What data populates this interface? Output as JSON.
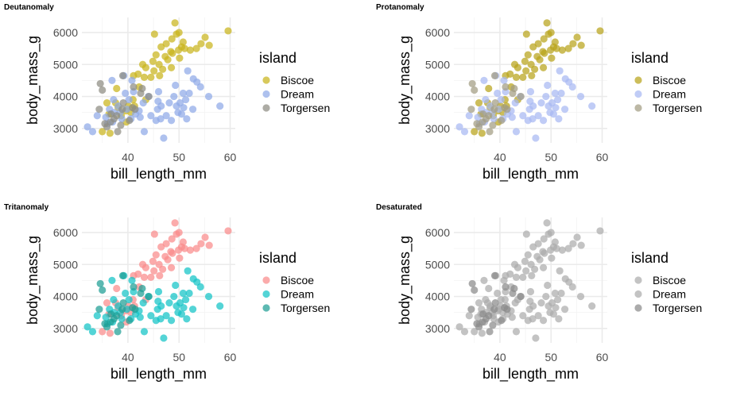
{
  "chart_data": {
    "type": "scatter",
    "xlabel": "bill_length_mm",
    "ylabel": "body_mass_g",
    "xlim": [
      31,
      61
    ],
    "ylim": [
      2550,
      6470
    ],
    "xticks": [
      40,
      50,
      60
    ],
    "yticks": [
      3000,
      4000,
      5000,
      6000
    ],
    "xminor": [
      35,
      45,
      55
    ],
    "yminor": [
      3500,
      4500,
      5500
    ],
    "legend_title": "island",
    "legend_position": "right",
    "grid": true,
    "series": [
      {
        "name": "Biscoe",
        "points": [
          [
            59.6,
            6050
          ],
          [
            49.2,
            6300
          ],
          [
            45.2,
            5950
          ],
          [
            50.0,
            6000
          ],
          [
            48.6,
            5800
          ],
          [
            49.5,
            5950
          ],
          [
            47.5,
            5650
          ],
          [
            46.5,
            5550
          ],
          [
            48.4,
            5400
          ],
          [
            50.5,
            5550
          ],
          [
            52.2,
            5450
          ],
          [
            55.1,
            5850
          ],
          [
            54.3,
            5650
          ],
          [
            55.9,
            5600
          ],
          [
            45.5,
            5300
          ],
          [
            44.9,
            5100
          ],
          [
            46.1,
            5000
          ],
          [
            47.3,
            5250
          ],
          [
            50.8,
            5700
          ],
          [
            49.9,
            5450
          ],
          [
            46.8,
            4850
          ],
          [
            43.5,
            4900
          ],
          [
            42.9,
            5000
          ],
          [
            45.1,
            4800
          ],
          [
            44.5,
            4600
          ],
          [
            47.8,
            5150
          ],
          [
            48.7,
            5350
          ],
          [
            46.2,
            4650
          ],
          [
            50.1,
            5200
          ],
          [
            51.1,
            5500
          ],
          [
            53.4,
            5500
          ],
          [
            42.0,
            4700
          ],
          [
            41.1,
            4650
          ],
          [
            48.5,
            4900
          ],
          [
            43.2,
            4600
          ],
          [
            40.6,
            3500
          ],
          [
            37.6,
            3800
          ],
          [
            38.7,
            3400
          ],
          [
            41.3,
            3700
          ],
          [
            35.9,
            3800
          ],
          [
            37.8,
            4250
          ],
          [
            39.6,
            3550
          ],
          [
            42.2,
            4300
          ],
          [
            36.5,
            2850
          ],
          [
            35.0,
            2900
          ],
          [
            38.1,
            3650
          ],
          [
            40.1,
            3700
          ],
          [
            41.0,
            3900
          ],
          [
            39.7,
            3200
          ],
          [
            36.3,
            3450
          ],
          [
            43.5,
            3900
          ]
        ]
      },
      {
        "name": "Dream",
        "points": [
          [
            32.1,
            3050
          ],
          [
            33.1,
            2900
          ],
          [
            34.0,
            3400
          ],
          [
            35.7,
            3350
          ],
          [
            36.4,
            3600
          ],
          [
            37.2,
            3900
          ],
          [
            38.1,
            3700
          ],
          [
            39.5,
            4100
          ],
          [
            40.2,
            3900
          ],
          [
            41.1,
            4150
          ],
          [
            39.2,
            4650
          ],
          [
            40.8,
            4500
          ],
          [
            36.9,
            4500
          ],
          [
            37.3,
            3500
          ],
          [
            38.8,
            3300
          ],
          [
            39.8,
            3600
          ],
          [
            41.5,
            3450
          ],
          [
            42.2,
            3550
          ],
          [
            40.6,
            3300
          ],
          [
            43.2,
            2900
          ],
          [
            36.0,
            3150
          ],
          [
            37.0,
            3200
          ],
          [
            38.5,
            3500
          ],
          [
            47.0,
            2700
          ],
          [
            45.5,
            3250
          ],
          [
            46.4,
            3300
          ],
          [
            47.5,
            3400
          ],
          [
            45.8,
            3600
          ],
          [
            46.5,
            3700
          ],
          [
            48.1,
            3800
          ],
          [
            49.0,
            4000
          ],
          [
            50.2,
            3800
          ],
          [
            50.8,
            4100
          ],
          [
            51.3,
            3900
          ],
          [
            52.0,
            4100
          ],
          [
            49.5,
            3700
          ],
          [
            50.5,
            3450
          ],
          [
            51.5,
            3300
          ],
          [
            52.7,
            3600
          ],
          [
            49.8,
            3500
          ],
          [
            50.9,
            3650
          ],
          [
            52.8,
            4550
          ],
          [
            53.5,
            4450
          ],
          [
            51.7,
            4800
          ],
          [
            54.2,
            4300
          ],
          [
            55.8,
            4000
          ],
          [
            58.0,
            3700
          ],
          [
            49.3,
            4350
          ],
          [
            45.9,
            3850
          ],
          [
            44.5,
            3400
          ],
          [
            46.0,
            4150
          ],
          [
            48.5,
            3250
          ],
          [
            42.4,
            3350
          ],
          [
            43.0,
            3800
          ],
          [
            44.0,
            4000
          ]
        ]
      },
      {
        "name": "Torgersen",
        "points": [
          [
            34.4,
            3600
          ],
          [
            34.6,
            4400
          ],
          [
            35.0,
            4200
          ],
          [
            36.6,
            3200
          ],
          [
            35.5,
            3150
          ],
          [
            38.6,
            3100
          ],
          [
            37.8,
            3400
          ],
          [
            39.1,
            3800
          ],
          [
            40.3,
            3250
          ],
          [
            41.1,
            4300
          ],
          [
            42.5,
            4100
          ],
          [
            38.9,
            3600
          ],
          [
            39.0,
            4650
          ],
          [
            38.0,
            2900
          ],
          [
            35.9,
            3050
          ],
          [
            36.7,
            3450
          ],
          [
            44.1,
            4000
          ],
          [
            42.8,
            4250
          ],
          [
            40.9,
            3650
          ],
          [
            37.3,
            3300
          ],
          [
            41.4,
            3600
          ]
        ]
      }
    ],
    "panels": [
      {
        "title": "Deutanomaly",
        "colors": [
          "#c9b41c",
          "#8fa9e8",
          "#8e8c82"
        ]
      },
      {
        "title": "Protanomaly",
        "colors": [
          "#b9a31a",
          "#a8b9f2",
          "#a29c82"
        ]
      },
      {
        "title": "Tritanomaly",
        "colors": [
          "#fa8b8b",
          "#12c3c6",
          "#1f9e94"
        ]
      },
      {
        "title": "Desaturated",
        "colors": [
          "#acacac",
          "#acacac",
          "#8a8a8a"
        ]
      }
    ]
  }
}
